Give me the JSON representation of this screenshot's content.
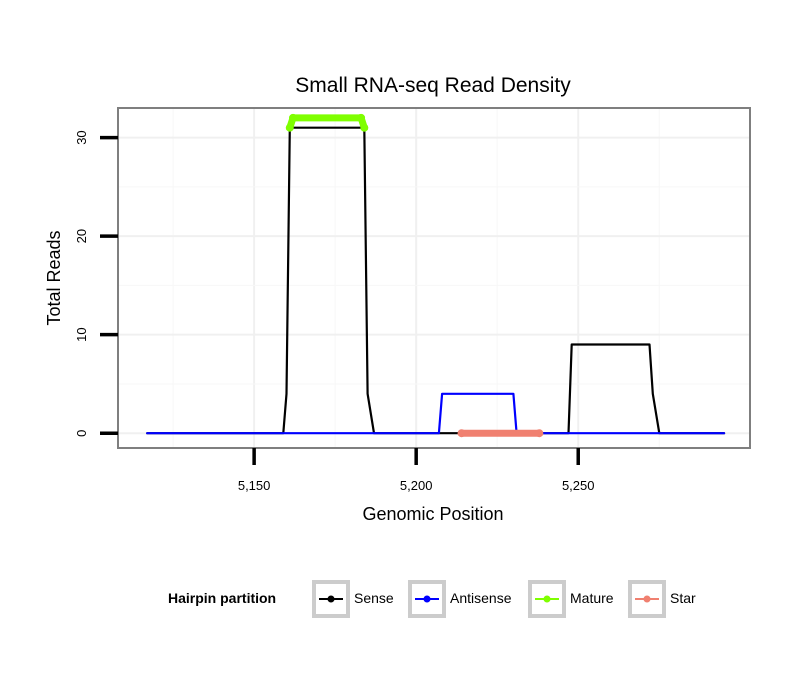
{
  "chart_data": {
    "type": "line",
    "title": "Small RNA-seq Read Density",
    "xlabel": "Genomic Position",
    "ylabel": "Total Reads",
    "xlim": [
      5108,
      5303
    ],
    "ylim": [
      -1.5,
      33
    ],
    "x_ticks": [
      5150,
      5200,
      5250
    ],
    "x_tick_labels": [
      "5,150",
      "5,200",
      "5,250"
    ],
    "y_ticks": [
      0,
      10,
      20,
      30
    ],
    "y_tick_labels": [
      "0",
      "10",
      "20",
      "30"
    ],
    "grid": true,
    "legend": {
      "title": "Hairpin partition",
      "placement": "bottom",
      "entries": [
        "Sense",
        "Antisense",
        "Mature",
        "Star"
      ]
    },
    "series": [
      {
        "name": "Sense",
        "color": "#000000",
        "x": [
          5117,
          5159,
          5160,
          5161,
          5184,
          5185,
          5187,
          5247,
          5248,
          5272,
          5273,
          5275,
          5295
        ],
        "y": [
          0,
          0,
          4,
          31,
          31,
          4,
          0,
          0,
          9,
          9,
          4,
          0,
          0
        ]
      },
      {
        "name": "Antisense",
        "color": "#0000ff",
        "x": [
          5117,
          5207,
          5208,
          5230,
          5231,
          5295
        ],
        "y": [
          0,
          0,
          4,
          4,
          0,
          0
        ]
      },
      {
        "name": "Mature",
        "color": "#7fff00",
        "x": [
          5161,
          5162,
          5183,
          5184
        ],
        "y": [
          31,
          32,
          32,
          31
        ]
      },
      {
        "name": "Star",
        "color": "#f08070",
        "x": [
          5214,
          5238
        ],
        "y": [
          0,
          0
        ]
      }
    ]
  }
}
